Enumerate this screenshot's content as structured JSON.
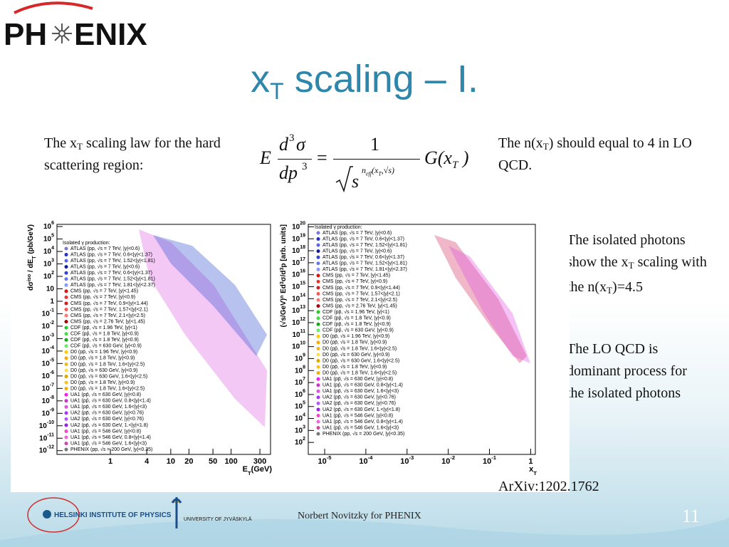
{
  "header": {
    "logo": {
      "left": "PH",
      "right": "ENIX"
    },
    "title": {
      "main": "x",
      "sub": "T",
      "rest": " scaling – I."
    }
  },
  "left_text": {
    "pre": "The x",
    "sub": "T",
    "post": " scaling law for the hard scattering region:"
  },
  "formula": {
    "E": "E",
    "num": [
      "d",
      "3",
      "σ"
    ],
    "den": [
      "dp",
      "3"
    ],
    "eq": "=",
    "one": "1",
    "root": "s",
    "exp": [
      "n",
      "eff",
      "(x",
      "T",
      ",√s)"
    ],
    "G": [
      "G(x",
      "T",
      " )"
    ]
  },
  "right_text": {
    "pre": "The n(x",
    "sub": "T",
    "post": ") should equal to 4 in LO QCD."
  },
  "notes": [
    {
      "parts": [
        "The isolated photons show the x",
        "T",
        " scaling with the n(x",
        "T",
        ")=4.5"
      ]
    },
    {
      "parts": [
        "The LO QCD is dominant process for the isolated photons"
      ]
    }
  ],
  "legend_title": "Isolated γ production:",
  "legend": [
    {
      "label": "ATLAS (pp, √s = 7 TeV, |y|<0.6)",
      "color": "#7a7ad6"
    },
    {
      "label": "ATLAS (pp, √s = 7 TeV, 0.6<|y|<1.37)",
      "color": "#2233cc"
    },
    {
      "label": "ATLAS (pp, √s = 7 TeV, 1.52<|y|<1.81)",
      "color": "#5566ee"
    },
    {
      "label": "ATLAS (pp, √s = 7 TeV, |y|<0.6)",
      "color": "#1a1aa0"
    },
    {
      "label": "ATLAS (pp, √s = 7 TeV, 0.6<|y|<1.37)",
      "color": "#3344dd"
    },
    {
      "label": "ATLAS (pp, √s = 7 TeV, 1.52<|y|<1.81)",
      "color": "#6677ee"
    },
    {
      "label": "ATLAS (pp, √s = 7 TeV, 1.81<|y|<2.37)",
      "color": "#8899ff"
    },
    {
      "label": "CMS (pp, √s = 7 TeV, |y|<1.45)",
      "color": "#dd1111"
    },
    {
      "label": "CMS (pp, √s = 7 TeV, |y|<0.9)",
      "color": "#ee3333"
    },
    {
      "label": "CMS (pp, √s = 7 TeV, 0.9<|y|<1.44)",
      "color": "#cc2222"
    },
    {
      "label": "CMS (pp, √s = 7 TeV, 1.57<|y|<2.1)",
      "color": "#ff5555"
    },
    {
      "label": "CMS (pp, √s = 7 TeV, 2.1<|y|<2.5)",
      "color": "#ff7777"
    },
    {
      "label": "CMS (pp, √s = 2.76 TeV, |y|<1.45)",
      "color": "#aa0000"
    },
    {
      "label": "CDF (pp̄, √s = 1.96 TeV, |y|<1)",
      "color": "#22cc22"
    },
    {
      "label": "CDF (pp̄, √s = 1.8 TeV, |y|<0.9)",
      "color": "#44dd44"
    },
    {
      "label": "CDF (pp̄, √s = 1.8 TeV, |y|<0.9)",
      "color": "#11aa11"
    },
    {
      "label": "CDF (pp̄, √s = 630 GeV, |y|<0.9)",
      "color": "#66ee66"
    },
    {
      "label": "D0 (pp̄, √s = 1.96 TeV, |y|<0.9)",
      "color": "#ffcc00"
    },
    {
      "label": "D0 (pp̄, √s = 1.8 TeV, |y|<0.9)",
      "color": "#ffaa00"
    },
    {
      "label": "D0 (pp̄, √s = 1.8 TeV, 1.6<|y|<2.5)",
      "color": "#eebb22"
    },
    {
      "label": "D0 (pp̄, √s = 630 GeV, |y|<0.9)",
      "color": "#ffdd44"
    },
    {
      "label": "D0 (pp̄, √s = 630 GeV, 1.6<|y|<2.5)",
      "color": "#ddaa00"
    },
    {
      "label": "D0 (pp̄, √s = 1.8 TeV, |y|<0.9)",
      "color": "#ffc020"
    },
    {
      "label": "D0 (pp̄, √s = 1.8 TeV, 1.6<|y|<2.5)",
      "color": "#f0b000"
    },
    {
      "label": "UA1 (pp̄, √s = 630 GeV, |y|<0.8)",
      "color": "#ee22ee"
    },
    {
      "label": "UA1 (pp̄, √s = 630 GeV, 0.8<|y|<1.4)",
      "color": "#cc33cc"
    },
    {
      "label": "UA1 (pp̄, √s = 630 GeV, 1.6<|y|<3)",
      "color": "#dd55dd"
    },
    {
      "label": "UA2 (pp̄, √s = 630 GeV, |y|<0.76)",
      "color": "#aa33ff"
    },
    {
      "label": "UA2 (pp̄, √s = 630 GeV, |y|<0.76)",
      "color": "#bb55ff"
    },
    {
      "label": "UA2 (pp̄, √s = 630 GeV, 1.<|y|<1.8)",
      "color": "#9922ee"
    },
    {
      "label": "UA1 (pp̄, √s = 546 GeV, |y|<0.8)",
      "color": "#ff44cc"
    },
    {
      "label": "UA1 (pp̄, √s = 546 GeV, 0.8<|y|<1.4)",
      "color": "#ee66dd"
    },
    {
      "label": "UA1 (pp̄, √s = 546 GeV, 1.6<|y|<3)",
      "color": "#cc44aa"
    },
    {
      "label": "PHENIX (pp, √s = 200 GeV, |y|<0.35)",
      "color": "#777777"
    }
  ],
  "chart_data": [
    {
      "type": "scatter",
      "log_x": true,
      "log_y": true,
      "ytitle": [
        {
          "text": "dσ"
        },
        {
          "text": "iso",
          "shift": "super"
        },
        {
          "text": " / dE"
        },
        {
          "text": "T",
          "shift": "sub"
        },
        {
          "text": " (pb/GeV)"
        }
      ],
      "xtitle": [
        {
          "text": "E"
        },
        {
          "text": "T",
          "shift": "sub"
        },
        {
          "text": "(GeV)"
        }
      ],
      "xlim": [
        0.13,
        450
      ],
      "ylim": [
        5e-13,
        1500000.0
      ],
      "xticks": [
        1,
        4,
        10,
        20,
        50,
        100,
        300
      ],
      "yticks": [
        {
          "value": 1000000.0,
          "label": {
            "base": "10",
            "exp": "6"
          }
        },
        {
          "value": 100000.0,
          "label": {
            "base": "10",
            "exp": "5"
          }
        },
        {
          "value": 10000.0,
          "label": {
            "base": "10",
            "exp": "4"
          }
        },
        {
          "value": 1000.0,
          "label": {
            "base": "10",
            "exp": "3"
          }
        },
        {
          "value": 100.0,
          "label": {
            "base": "10",
            "exp": "2"
          }
        },
        {
          "value": 10,
          "label": {
            "base": "10",
            "exp": ""
          }
        },
        {
          "value": 1,
          "label": {
            "base": "1",
            "exp": ""
          }
        },
        {
          "value": 0.1,
          "label": {
            "base": "10",
            "exp": "-1"
          }
        },
        {
          "value": 0.01,
          "label": {
            "base": "10",
            "exp": "-2"
          }
        },
        {
          "value": 0.001,
          "label": {
            "base": "10",
            "exp": "-3"
          }
        },
        {
          "value": 0.0001,
          "label": {
            "base": "10",
            "exp": "-4"
          }
        },
        {
          "value": 1e-05,
          "label": {
            "base": "10",
            "exp": "-5"
          }
        },
        {
          "value": 1e-06,
          "label": {
            "base": "10",
            "exp": "-6"
          }
        },
        {
          "value": 1e-07,
          "label": {
            "base": "10",
            "exp": "-7"
          }
        },
        {
          "value": 1e-08,
          "label": {
            "base": "10",
            "exp": "-8"
          }
        },
        {
          "value": 1e-09,
          "label": {
            "base": "10",
            "exp": "-9"
          }
        },
        {
          "value": 1e-10,
          "label": {
            "base": "10",
            "exp": "-10"
          }
        },
        {
          "value": 1e-11,
          "label": {
            "base": "10",
            "exp": "-11"
          }
        },
        {
          "value": 1e-12,
          "label": {
            "base": "10",
            "exp": "-12"
          }
        }
      ]
    },
    {
      "type": "scatter",
      "log_x": true,
      "log_y": true,
      "ytitle": [
        {
          "text": "(√s/GeV)"
        },
        {
          "text": "n",
          "shift": "super"
        },
        {
          "text": " Ed"
        },
        {
          "text": "3",
          "shift": "super"
        },
        {
          "text": "σ/d"
        },
        {
          "text": "3",
          "shift": "super"
        },
        {
          "text": "p [arb. units]"
        }
      ],
      "xtitle": [
        {
          "text": "x"
        },
        {
          "text": "T",
          "shift": "sub"
        }
      ],
      "xlim": [
        4e-06,
        1.3
      ],
      "ylim": [
        10.0,
        1.6e+20
      ],
      "xticks": [
        {
          "value": 1e-05,
          "label": {
            "base": "10",
            "exp": "-5"
          }
        },
        {
          "value": 0.0001,
          "label": {
            "base": "10",
            "exp": "-4"
          }
        },
        {
          "value": 0.001,
          "label": {
            "base": "10",
            "exp": "-3"
          }
        },
        {
          "value": 0.01,
          "label": {
            "base": "10",
            "exp": "-2"
          }
        },
        {
          "value": 0.1,
          "label": {
            "base": "10",
            "exp": "-1"
          }
        },
        {
          "value": 1,
          "label": {
            "base": "1",
            "exp": ""
          }
        }
      ],
      "yticks": [
        {
          "value": 1e+20,
          "label": {
            "base": "10",
            "exp": "20"
          }
        },
        {
          "value": 1e+19,
          "label": {
            "base": "10",
            "exp": "19"
          }
        },
        {
          "value": 1e+18,
          "label": {
            "base": "10",
            "exp": "18"
          }
        },
        {
          "value": 1e+17,
          "label": {
            "base": "10",
            "exp": "17"
          }
        },
        {
          "value": 1e+16,
          "label": {
            "base": "10",
            "exp": "16"
          }
        },
        {
          "value": 1000000000000000.0,
          "label": {
            "base": "10",
            "exp": "15"
          }
        },
        {
          "value": 100000000000000.0,
          "label": {
            "base": "10",
            "exp": "14"
          }
        },
        {
          "value": 10000000000000.0,
          "label": {
            "base": "10",
            "exp": "13"
          }
        },
        {
          "value": 1000000000000.0,
          "label": {
            "base": "10",
            "exp": "12"
          }
        },
        {
          "value": 100000000000.0,
          "label": {
            "base": "10",
            "exp": "11"
          }
        },
        {
          "value": 10000000000.0,
          "label": {
            "base": "10",
            "exp": "10"
          }
        },
        {
          "value": 1000000000.0,
          "label": {
            "base": "10",
            "exp": "9"
          }
        },
        {
          "value": 100000000.0,
          "label": {
            "base": "10",
            "exp": "8"
          }
        },
        {
          "value": 10000000.0,
          "label": {
            "base": "10",
            "exp": "7"
          }
        },
        {
          "value": 1000000.0,
          "label": {
            "base": "10",
            "exp": "6"
          }
        },
        {
          "value": 100000.0,
          "label": {
            "base": "10",
            "exp": "5"
          }
        },
        {
          "value": 10000.0,
          "label": {
            "base": "10",
            "exp": "4"
          }
        },
        {
          "value": 1000.0,
          "label": {
            "base": "10",
            "exp": "3"
          }
        },
        {
          "value": 100.0,
          "label": {
            "base": "10",
            "exp": "2"
          }
        }
      ]
    }
  ],
  "citation": "ArXiv:1202.1762",
  "footer": {
    "institute": "HELSINKI INSTITUTE OF PHYSICS",
    "university": "UNIVERSITY OF JYVÄSKYLÄ",
    "author": "Norbert Novitzky for PHENIX",
    "page": "11"
  }
}
